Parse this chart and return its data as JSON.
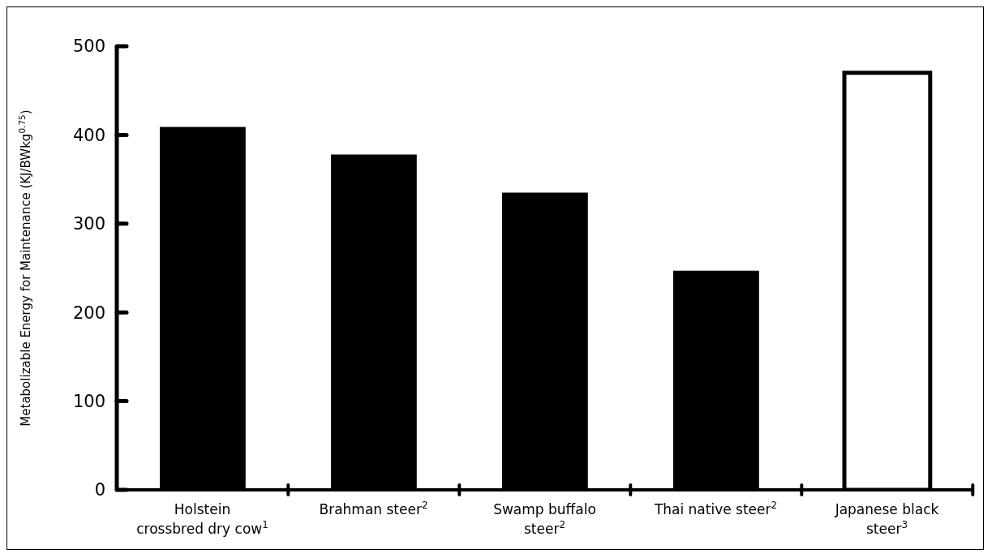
{
  "chart_data": {
    "type": "bar",
    "ylabel": "Metabolizable Energy for Maintenance (KJ/BWkg$^{0.75}$)",
    "categories": [
      "Holstein crossbred dry cow$^{1}$",
      "Brahman steer$^{2}$",
      "Swamp buffalo steer$^{2}$",
      "Thai native steer$^{2}$",
      "Japanese black steer$^{3}$"
    ],
    "values": [
      409,
      378,
      335,
      247,
      470
    ],
    "colors": [
      "#000000",
      "#000000",
      "#000000",
      "#000000",
      "#ffffff"
    ],
    "ylim": [
      0,
      500
    ],
    "yticks": [
      0,
      100,
      200,
      300,
      400,
      500
    ],
    "grid": false,
    "legend": false
  }
}
